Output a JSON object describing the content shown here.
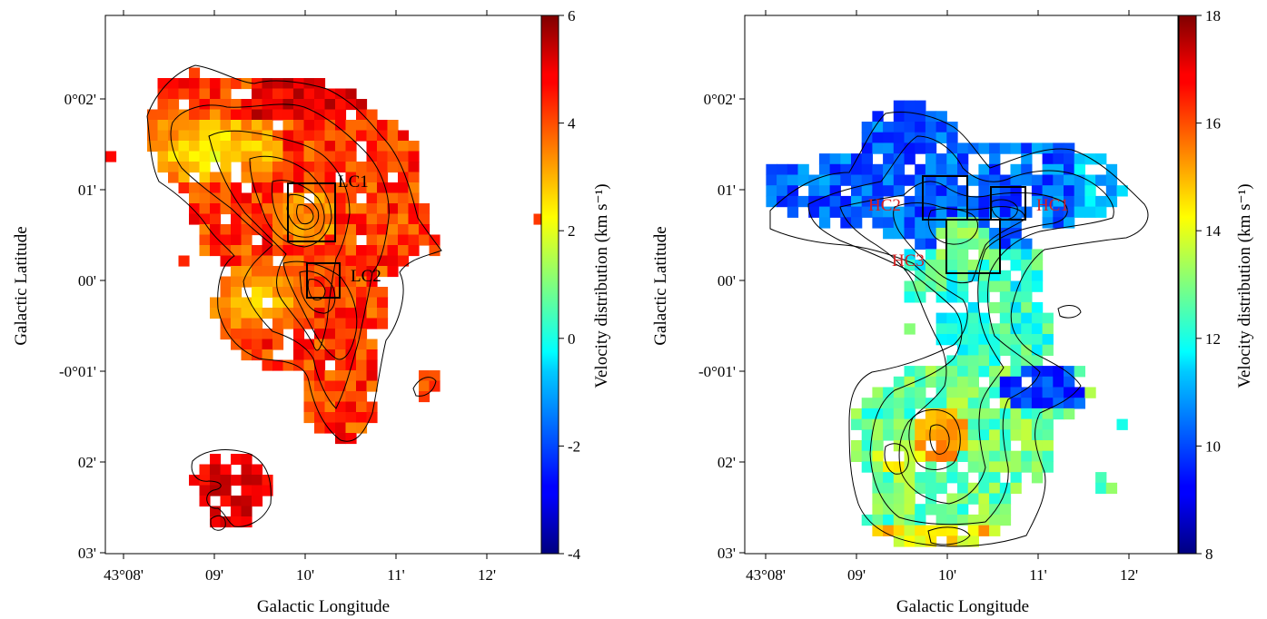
{
  "chart_data": [
    {
      "type": "heatmap",
      "xlabel": "Galactic Longitude",
      "ylabel": "Galactic Latitude",
      "colorbar_label": "Velocity distribution (km s⁻¹)",
      "colormap": "jet",
      "clim": [
        -4,
        6
      ],
      "colorbar_ticks": [
        "6",
        "4",
        "2",
        "0",
        "-2",
        "-4"
      ],
      "xticks": [
        "43°08'",
        "09'",
        "10'",
        "11'",
        "12'"
      ],
      "yticks": [
        "0°02'",
        "01'",
        "00'",
        "-0°01'",
        "02'",
        "03'"
      ],
      "boxes": [
        {
          "label": "LC1",
          "color": "#000000"
        },
        {
          "label": "LC2",
          "color": "#000000"
        }
      ],
      "contours": true,
      "grid": false
    },
    {
      "type": "heatmap",
      "xlabel": "Galactic Longitude",
      "ylabel": "Galactic Latitude",
      "colorbar_label": "Velocity distribution (km s⁻¹)",
      "colormap": "jet",
      "clim": [
        8,
        18
      ],
      "colorbar_ticks": [
        "18",
        "16",
        "14",
        "12",
        "10",
        "8"
      ],
      "xticks": [
        "43°08'",
        "09'",
        "10'",
        "11'",
        "12'"
      ],
      "yticks": [
        "0°02'",
        "01'",
        "00'",
        "-0°01'",
        "02'",
        "03'"
      ],
      "boxes": [
        {
          "label": "HC1",
          "color": "#d62020"
        },
        {
          "label": "HC2",
          "color": "#d62020"
        },
        {
          "label": "HC3",
          "color": "#d62020"
        }
      ],
      "contours": true,
      "grid": false
    }
  ]
}
